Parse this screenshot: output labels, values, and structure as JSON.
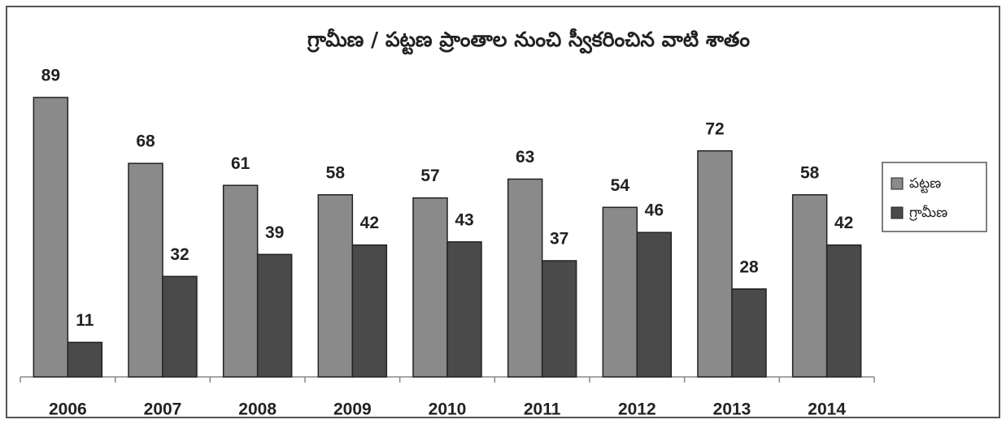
{
  "chart_data": {
    "type": "bar",
    "title": "గ్రామీణ / పట్టణ ప్రాంతాల నుంచి స్వీకరించిన వాటి శాతం",
    "categories": [
      "2006",
      "2007",
      "2008",
      "2009",
      "2010",
      "2011",
      "2012",
      "2013",
      "2014"
    ],
    "series": [
      {
        "name": "పట్టణ",
        "color": "#8a8a8a",
        "values": [
          89,
          68,
          61,
          58,
          57,
          63,
          54,
          72,
          58
        ]
      },
      {
        "name": "గ్రామీణ",
        "color": "#4a4a4a",
        "values": [
          11,
          32,
          39,
          42,
          43,
          37,
          46,
          28,
          42
        ]
      }
    ],
    "legend": "right"
  }
}
